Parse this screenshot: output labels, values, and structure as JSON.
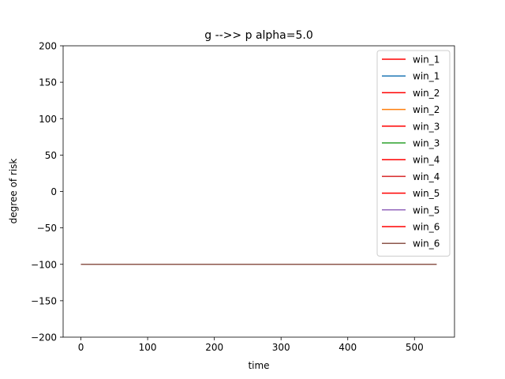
{
  "chart_data": {
    "type": "line",
    "title": "g -->> p  alpha=5.0",
    "xlabel": "time",
    "ylabel": "degree of risk",
    "xlim": [
      -26.7,
      560
    ],
    "ylim": [
      -200,
      200
    ],
    "xticks": [
      0,
      100,
      200,
      300,
      400,
      500
    ],
    "yticks": [
      -200,
      -150,
      -100,
      -50,
      0,
      50,
      100,
      150,
      200
    ],
    "ytick_labels": [
      "−200",
      "−150",
      "−100",
      "−50",
      "0",
      "50",
      "100",
      "150",
      "200"
    ],
    "grid": false,
    "legend_position": "top-right",
    "series": [
      {
        "name": "win_1",
        "color": "#ff0000",
        "x": [
          0,
          487
        ],
        "y": [
          -100,
          -100
        ]
      },
      {
        "name": "win_1",
        "color": "#1f77b4",
        "x": [
          0,
          533
        ],
        "y": [
          -100,
          -100
        ]
      },
      {
        "name": "win_2",
        "color": "#ff0000",
        "x": [
          0,
          487
        ],
        "y": [
          -100,
          -100
        ]
      },
      {
        "name": "win_2",
        "color": "#ff7f0e",
        "x": [
          0,
          533
        ],
        "y": [
          -100,
          -100
        ]
      },
      {
        "name": "win_3",
        "color": "#ff0000",
        "x": [
          0,
          487
        ],
        "y": [
          -100,
          -100
        ]
      },
      {
        "name": "win_3",
        "color": "#2ca02c",
        "x": [
          0,
          533
        ],
        "y": [
          -100,
          -100
        ]
      },
      {
        "name": "win_4",
        "color": "#ff0000",
        "x": [
          0,
          487
        ],
        "y": [
          -100,
          -100
        ]
      },
      {
        "name": "win_4",
        "color": "#d62728",
        "x": [
          0,
          533
        ],
        "y": [
          -100,
          -100
        ]
      },
      {
        "name": "win_5",
        "color": "#ff0000",
        "x": [
          0,
          487
        ],
        "y": [
          -100,
          -100
        ]
      },
      {
        "name": "win_5",
        "color": "#9467bd",
        "x": [
          0,
          533
        ],
        "y": [
          -100,
          -100
        ]
      },
      {
        "name": "win_6",
        "color": "#ff0000",
        "x": [
          0,
          487
        ],
        "y": [
          -100,
          -100
        ]
      },
      {
        "name": "win_6",
        "color": "#8c564b",
        "x": [
          0,
          533
        ],
        "y": [
          -100,
          -100
        ]
      }
    ]
  }
}
